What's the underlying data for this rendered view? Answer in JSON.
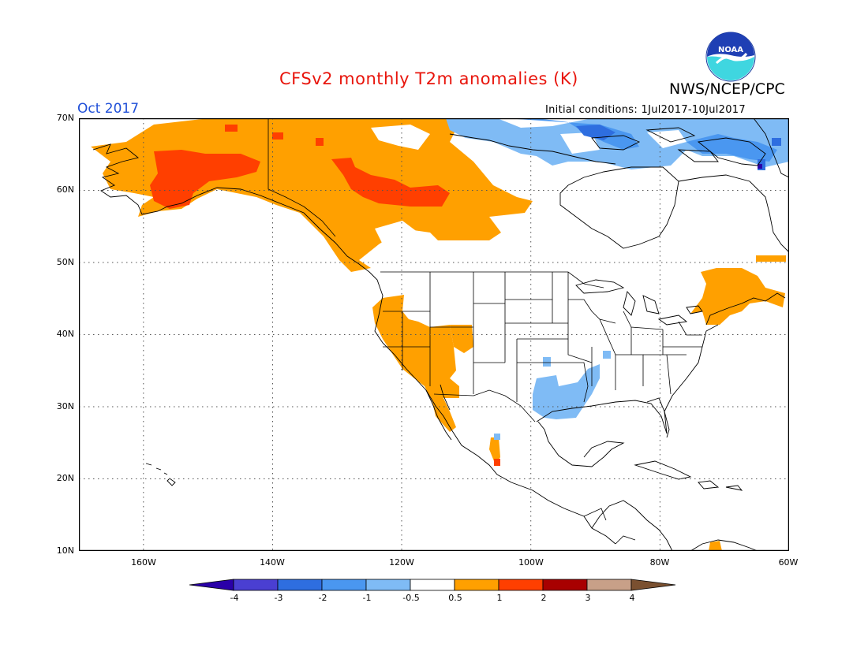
{
  "header": {
    "title": "CFSv2 monthly T2m anomalies (K)",
    "agency": "NWS/NCEP/CPC",
    "valid_month": "Oct 2017",
    "initial_conditions": "Initial conditions: 1Jul2017-10Jul2017",
    "logo_text": "NOAA"
  },
  "axes": {
    "lat_labels": [
      "70N",
      "60N",
      "50N",
      "40N",
      "30N",
      "20N",
      "10N"
    ],
    "lon_labels": [
      "160W",
      "140W",
      "120W",
      "100W",
      "80W",
      "60W"
    ],
    "lat_range": [
      10,
      70
    ],
    "lon_range": [
      -170,
      -60
    ],
    "grid": "dotted"
  },
  "colorbar": {
    "labels": [
      "-4",
      "-3",
      "-2",
      "-1",
      "-0.5",
      "0.5",
      "1",
      "2",
      "3",
      "4"
    ],
    "colors": [
      "#2a00a8",
      "#4a3fd2",
      "#2e6ee0",
      "#4a97f0",
      "#7fbbf5",
      "#ffffff",
      "#ffa000",
      "#ff3f00",
      "#a80000",
      "#c8a088",
      "#7a5030"
    ],
    "unit": "K"
  },
  "anomaly_regions": [
    {
      "name": "alaska-yukon",
      "category": "0.5 to 1"
    },
    {
      "name": "central-alaska",
      "category": "1 to 2"
    },
    {
      "name": "northwest-territories",
      "category": "1 to 2"
    },
    {
      "name": "us-southwest",
      "category": "0.5 to 1"
    },
    {
      "name": "northeast-us-maritimes",
      "category": "0.5 to 1"
    },
    {
      "name": "south-central-us",
      "category": "-1 to -0.5"
    },
    {
      "name": "nunavut-quebec",
      "category": "-1 to -0.5"
    },
    {
      "name": "baffin",
      "category": "-2 to -1"
    }
  ]
}
